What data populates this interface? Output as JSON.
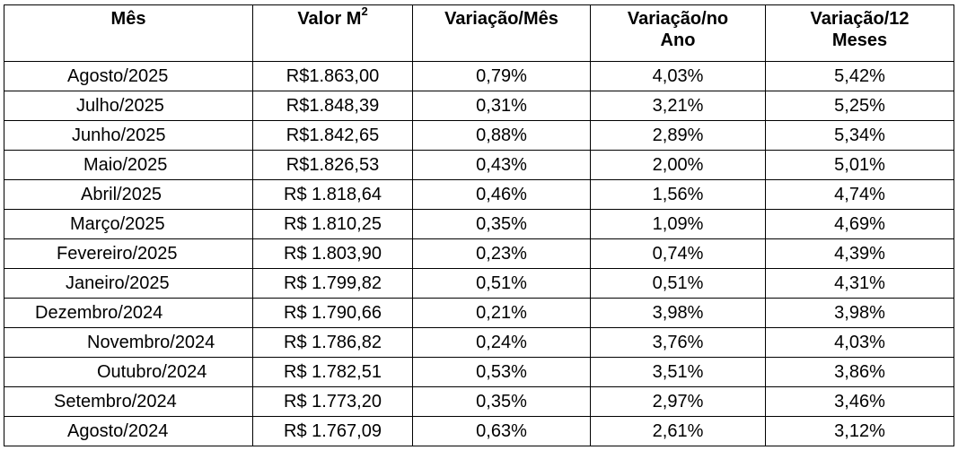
{
  "table": {
    "headers": {
      "month": "Mês",
      "value_prefix": "Valor M",
      "value_sup": "2",
      "var_month": "Variação/Mês",
      "var_year": "Variação/no Ano",
      "var_12m": "Variação/12 Meses"
    },
    "rows": [
      {
        "month": "Agosto/2025",
        "value": "R$1.863,00",
        "var_month": "0,79%",
        "var_year": "4,03%",
        "var_12m": "5,42%"
      },
      {
        "month": "Julho/2025",
        "value": "R$1.848,39",
        "var_month": "0,31%",
        "var_year": "3,21%",
        "var_12m": "5,25%"
      },
      {
        "month": "Junho/2025",
        "value": "R$1.842,65",
        "var_month": "0,88%",
        "var_year": "2,89%",
        "var_12m": "5,34%"
      },
      {
        "month": "Maio/2025",
        "value": "R$1.826,53",
        "var_month": "0,43%",
        "var_year": "2,00%",
        "var_12m": "5,01%"
      },
      {
        "month": "Abril/2025",
        "value": "R$ 1.818,64",
        "var_month": "0,46%",
        "var_year": "1,56%",
        "var_12m": "4,74%"
      },
      {
        "month": "Março/2025",
        "value": "R$ 1.810,25",
        "var_month": "0,35%",
        "var_year": "1,09%",
        "var_12m": "4,69%"
      },
      {
        "month": "Fevereiro/2025",
        "value": "R$ 1.803,90",
        "var_month": "0,23%",
        "var_year": "0,74%",
        "var_12m": "4,39%"
      },
      {
        "month": "Janeiro/2025",
        "value": "R$ 1.799,82",
        "var_month": "0,51%",
        "var_year": "0,51%",
        "var_12m": "4,31%"
      },
      {
        "month": "Dezembro/2024",
        "value": "R$ 1.790,66",
        "var_month": "0,21%",
        "var_year": "3,98%",
        "var_12m": "3,98%"
      },
      {
        "month": "Novembro/2024",
        "value": "R$ 1.786,82",
        "var_month": "0,24%",
        "var_year": "3,76%",
        "var_12m": "4,03%"
      },
      {
        "month": "Outubro/2024",
        "value": "R$ 1.782,51",
        "var_month": "0,53%",
        "var_year": "3,51%",
        "var_12m": "3,86%"
      },
      {
        "month": "Setembro/2024",
        "value": "R$ 1.773,20",
        "var_month": "0,35%",
        "var_year": "2,97%",
        "var_12m": "3,46%"
      },
      {
        "month": "Agosto/2024",
        "value": "R$ 1.767,09",
        "var_month": "0,63%",
        "var_year": "2,61%",
        "var_12m": "3,12%"
      }
    ]
  }
}
